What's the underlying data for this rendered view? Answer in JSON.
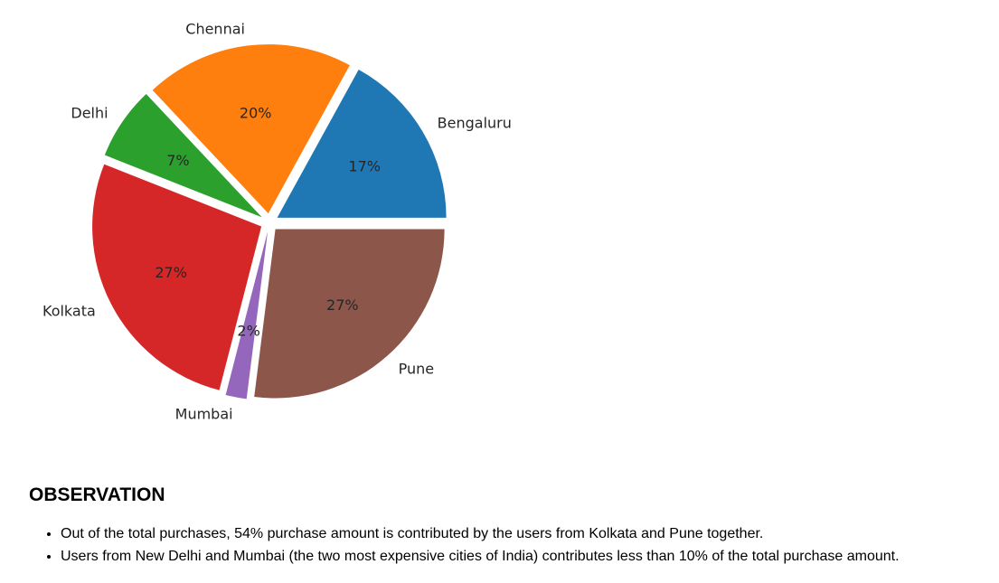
{
  "chart_data": {
    "type": "pie",
    "categories": [
      "Bengaluru",
      "Chennai",
      "Delhi",
      "Kolkata",
      "Mumbai",
      "Pune"
    ],
    "values": [
      17,
      20,
      7,
      27,
      2,
      27
    ],
    "value_labels": [
      "17%",
      "20%",
      "7%",
      "27%",
      "2%",
      "27%"
    ],
    "colors": [
      "#1f77b4",
      "#ff7f0e",
      "#2ca02c",
      "#d62728",
      "#9467bd",
      "#8c564b"
    ],
    "exploded": true
  },
  "observation": {
    "heading": "OBSERVATION",
    "items": [
      "Out of the total purchases, 54% purchase amount is contributed by the users from Kolkata and Pune together.",
      "Users from New Delhi and Mumbai (the two most expensive cities of India) contributes less than 10% of the total purchase amount."
    ]
  }
}
